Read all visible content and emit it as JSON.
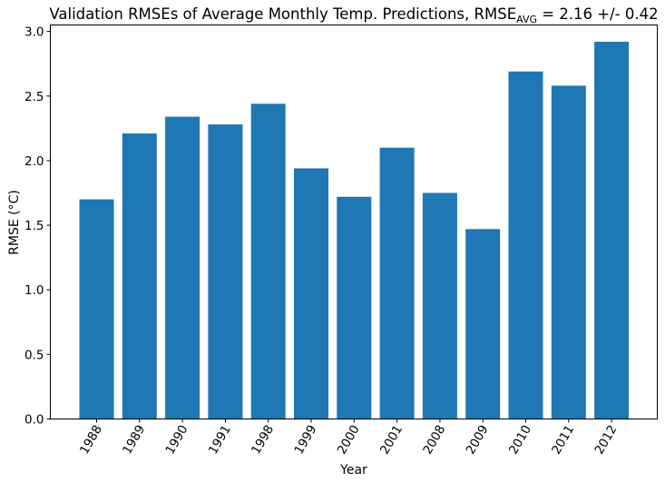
{
  "chart_data": {
    "type": "bar",
    "title": "Validation RMSEs of Average Monthly Temp. Predictions, RMSE",
    "title_subscript": "AVG",
    "title_suffix": " =  2.16 +/-  0.42",
    "xlabel": "Year",
    "ylabel": "RMSE (°C)",
    "categories": [
      "1988",
      "1989",
      "1990",
      "1991",
      "1998",
      "1999",
      "2000",
      "2001",
      "2008",
      "2009",
      "2010",
      "2011",
      "2012"
    ],
    "values": [
      1.7,
      2.21,
      2.34,
      2.28,
      2.44,
      1.94,
      1.72,
      2.1,
      1.75,
      1.47,
      2.69,
      2.58,
      2.92
    ],
    "ylim": [
      0,
      3.05
    ],
    "yticks": [
      "0.0",
      "0.5",
      "1.0",
      "1.5",
      "2.0",
      "2.5",
      "3.0"
    ],
    "bar_color": "#1f77b4",
    "grid": false,
    "legend": "none"
  }
}
